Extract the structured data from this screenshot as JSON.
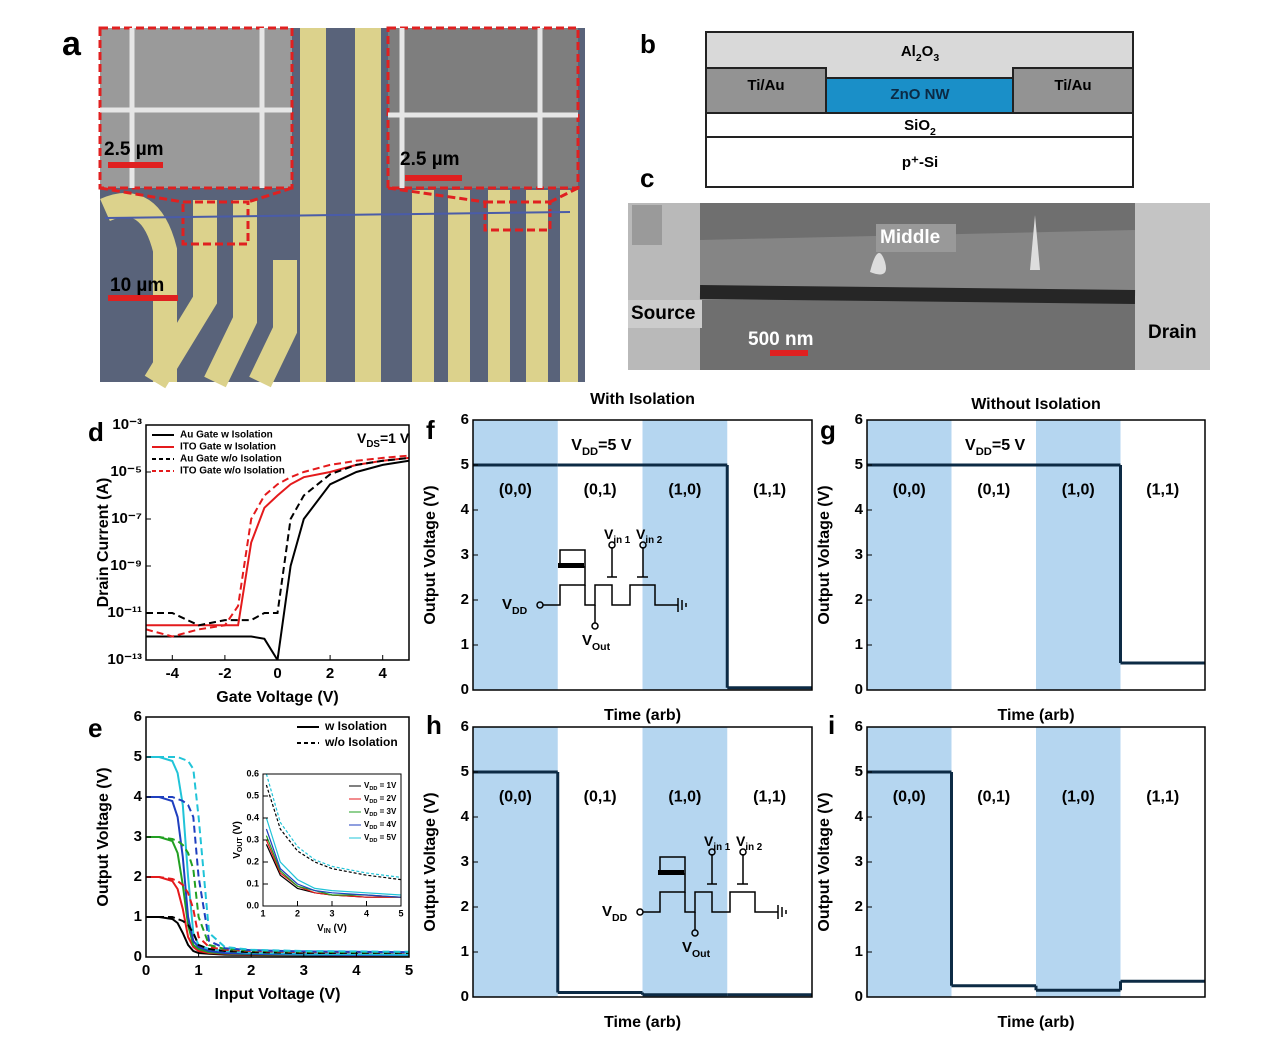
{
  "panel_a": {
    "letter": "a",
    "scale_bars": [
      "2.5 µm",
      "2.5 µm",
      "10 µm"
    ]
  },
  "panel_b": {
    "letter": "b",
    "layers": {
      "top": [
        "Al",
        "2",
        "O",
        "3"
      ],
      "left_contact": "Ti/Au",
      "channel": "ZnO NW",
      "right_contact": "Ti/Au",
      "oxide": [
        "SiO",
        "2"
      ],
      "substrate": "p⁺-Si"
    }
  },
  "panel_c": {
    "letter": "c",
    "labels": [
      "Middle",
      "Source",
      "Drain"
    ],
    "scale_bar": "500 nm"
  },
  "chart_data": [
    {
      "panel": "d",
      "type": "line",
      "xlabel": "Gate Voltage (V)",
      "ylabel": "Drain Current (A)",
      "annotation": [
        "V",
        "DS",
        "=1 V"
      ],
      "log_y": true,
      "xlim": [
        -5,
        5
      ],
      "xticks": [
        -4,
        -2,
        0,
        2,
        4
      ],
      "ylim": [
        1e-13,
        0.001
      ],
      "yticks": [
        {
          "value": 1e-13,
          "label": "10⁻¹³"
        },
        {
          "value": 1e-11,
          "label": "10⁻¹¹"
        },
        {
          "value": 1e-09,
          "label": "10⁻⁹"
        },
        {
          "value": 1e-07,
          "label": "10⁻⁷"
        },
        {
          "value": 1e-05,
          "label": "10⁻⁵"
        },
        {
          "value": 0.001,
          "label": "10⁻³"
        }
      ],
      "x": [
        -5,
        -4,
        -3,
        -2,
        -1.5,
        -1,
        -0.5,
        0,
        0.5,
        1,
        2,
        3,
        4,
        5
      ],
      "legend": "upper left",
      "series": [
        {
          "name": "Au Gate w Isolation",
          "color": "#000000",
          "dash": false,
          "values": [
            1e-12,
            1e-12,
            1e-12,
            1e-12,
            1e-12,
            1e-12,
            8e-13,
            1e-13,
            1e-09,
            1e-07,
            3e-06,
            1e-05,
            2e-05,
            3e-05
          ]
        },
        {
          "name": "ITO Gate w Isolation",
          "color": "#e41a1c",
          "dash": false,
          "values": [
            3e-12,
            3e-12,
            3e-12,
            3e-12,
            3e-12,
            1e-08,
            3e-07,
            1e-06,
            3e-06,
            6e-06,
            1e-05,
            2e-05,
            3e-05,
            4e-05
          ]
        },
        {
          "name": "Au Gate w/o Isolation",
          "color": "#000000",
          "dash": true,
          "values": [
            1e-11,
            1e-11,
            3e-12,
            5e-12,
            5e-12,
            5e-12,
            1e-11,
            1e-11,
            1e-07,
            1e-06,
            8e-06,
            2e-05,
            3e-05,
            4e-05
          ]
        },
        {
          "name": "ITO Gate w/o Isolation",
          "color": "#e41a1c",
          "dash": true,
          "values": [
            2e-12,
            1e-12,
            2e-12,
            3e-12,
            2e-11,
            1e-07,
            1e-06,
            3e-06,
            6e-06,
            1e-05,
            2e-05,
            3e-05,
            4e-05,
            5e-05
          ]
        }
      ]
    },
    {
      "panel": "e",
      "type": "line",
      "xlabel": "Input Voltage (V)",
      "ylabel": "Output Voltage (V)",
      "xlim": [
        0,
        5
      ],
      "xticks": [
        0,
        1,
        2,
        3,
        4,
        5
      ],
      "ylim": [
        0,
        6
      ],
      "yticks": [
        0,
        1,
        2,
        3,
        4,
        5,
        6
      ],
      "x": [
        0,
        0.25,
        0.5,
        0.6,
        0.7,
        0.8,
        0.9,
        1,
        1.2,
        1.5,
        2,
        3,
        4,
        5
      ],
      "legend": "upper right",
      "legend_entries": [
        {
          "name": "w Isolation",
          "color": "#000000",
          "dash": false
        },
        {
          "name": "w/o Isolation",
          "color": "#000000",
          "dash": true
        }
      ],
      "series": [
        {
          "color": "#000000",
          "dash": false,
          "values": [
            1,
            1,
            0.95,
            0.85,
            0.6,
            0.3,
            0.15,
            0.1,
            0.08,
            0.06,
            0.05,
            0.04,
            0.03,
            0.03
          ]
        },
        {
          "color": "#e41a1c",
          "dash": false,
          "values": [
            2,
            2,
            1.9,
            1.7,
            1.2,
            0.5,
            0.25,
            0.15,
            0.1,
            0.08,
            0.06,
            0.05,
            0.04,
            0.04
          ]
        },
        {
          "color": "#22a022",
          "dash": false,
          "values": [
            3,
            3,
            2.9,
            2.6,
            1.8,
            0.8,
            0.3,
            0.2,
            0.12,
            0.09,
            0.07,
            0.05,
            0.05,
            0.04
          ]
        },
        {
          "color": "#1f3fbf",
          "dash": false,
          "values": [
            4,
            4,
            3.9,
            3.5,
            2.5,
            1,
            0.4,
            0.25,
            0.15,
            0.1,
            0.08,
            0.06,
            0.05,
            0.05
          ]
        },
        {
          "color": "#21c4d8",
          "dash": false,
          "values": [
            5,
            5,
            4.9,
            4.6,
            3.8,
            2,
            0.6,
            0.3,
            0.2,
            0.15,
            0.1,
            0.08,
            0.07,
            0.06
          ]
        },
        {
          "color": "#000000",
          "dash": true,
          "values": [
            1,
            1,
            1,
            0.95,
            0.9,
            0.8,
            0.6,
            0.3,
            0.2,
            0.15,
            0.12,
            0.1,
            0.1,
            0.1
          ]
        },
        {
          "color": "#e41a1c",
          "dash": true,
          "values": [
            2,
            2,
            1.95,
            1.9,
            1.8,
            1.6,
            1.2,
            0.5,
            0.25,
            0.18,
            0.15,
            0.12,
            0.12,
            0.11
          ]
        },
        {
          "color": "#22a022",
          "dash": true,
          "values": [
            3,
            3,
            2.95,
            2.9,
            2.8,
            2.6,
            2.2,
            1,
            0.3,
            0.2,
            0.16,
            0.13,
            0.12,
            0.12
          ]
        },
        {
          "color": "#1f3fbf",
          "dash": true,
          "values": [
            4,
            4,
            4,
            3.95,
            3.9,
            3.8,
            3.5,
            2,
            0.4,
            0.22,
            0.17,
            0.14,
            0.13,
            0.12
          ]
        },
        {
          "color": "#21c4d8",
          "dash": true,
          "values": [
            5,
            5,
            5,
            5,
            4.95,
            4.9,
            4.7,
            3.5,
            0.6,
            0.25,
            0.18,
            0.15,
            0.14,
            0.13
          ]
        }
      ]
    },
    {
      "type": "line",
      "inset": true,
      "xlabel": [
        "V",
        "IN",
        " (V)"
      ],
      "ylabel": [
        "V",
        "OUT",
        " (V)"
      ],
      "xlim": [
        1,
        5
      ],
      "xticks": [
        1,
        2,
        3,
        4,
        5
      ],
      "ylim": [
        0,
        0.6
      ],
      "yticks": [
        {
          "value": 0,
          "label": "0.0"
        },
        0.1,
        0.2,
        0.3,
        0.4,
        0.5,
        0.6
      ],
      "x": [
        1.1,
        1.5,
        2,
        2.5,
        3,
        4,
        5
      ],
      "legend": "upper right",
      "series": [
        {
          "name": [
            "V",
            "DD",
            " = 1V"
          ],
          "color": "#000000",
          "dash": false,
          "values": [
            0.28,
            0.14,
            0.08,
            0.06,
            0.05,
            0.04,
            0.04
          ]
        },
        {
          "name": [
            "V",
            "DD",
            " = 2V"
          ],
          "color": "#e41a1c",
          "dash": false,
          "values": [
            0.3,
            0.15,
            0.09,
            0.06,
            0.05,
            0.04,
            0.04
          ]
        },
        {
          "name": [
            "V",
            "DD",
            " = 3V"
          ],
          "color": "#22a022",
          "dash": false,
          "values": [
            0.32,
            0.16,
            0.09,
            0.07,
            0.05,
            0.05,
            0.04
          ]
        },
        {
          "name": [
            "V",
            "DD",
            " = 4V"
          ],
          "color": "#1f3fbf",
          "dash": false,
          "values": [
            0.35,
            0.17,
            0.1,
            0.07,
            0.06,
            0.05,
            0.04
          ]
        },
        {
          "name": [
            "V",
            "DD",
            " = 5V"
          ],
          "color": "#21c4d8",
          "dash": false,
          "values": [
            0.4,
            0.2,
            0.12,
            0.08,
            0.07,
            0.06,
            0.05
          ]
        },
        {
          "color": "#000000",
          "dash": true,
          "values": [
            0.55,
            0.35,
            0.25,
            0.2,
            0.17,
            0.14,
            0.12
          ]
        },
        {
          "color": "#21c4d8",
          "dash": true,
          "values": [
            0.6,
            0.38,
            0.27,
            0.21,
            0.18,
            0.15,
            0.13
          ]
        }
      ]
    },
    {
      "panel": "f",
      "type": "step",
      "title": "With Isolation",
      "xlabel": "Time (arb)",
      "ylabel": "Output Voltage (V)",
      "annotation": [
        "V",
        "DD",
        "=5 V"
      ],
      "categories": [
        "(0,0)",
        "(0,1)",
        "(1,0)",
        "(1,1)"
      ],
      "shade": [
        true,
        false,
        true,
        false
      ],
      "shade_color": "#b5d6f0",
      "color": "#0d2b45",
      "values": [
        5,
        5,
        5,
        0.05
      ],
      "ylim": [
        0,
        6
      ],
      "yticks": [
        0,
        1,
        2,
        3,
        4,
        5,
        6
      ],
      "circuit": {
        "vdd": [
          "V",
          "DD"
        ],
        "vin1": [
          "V",
          "in 1"
        ],
        "vin2": [
          "V",
          "in 2"
        ],
        "vout": [
          "V",
          "Out"
        ]
      }
    },
    {
      "panel": "g",
      "type": "step",
      "title": "Without Isolation",
      "xlabel": "Time (arb)",
      "ylabel": "Output Voltage (V)",
      "annotation": [
        "V",
        "DD",
        "=5 V"
      ],
      "categories": [
        "(0,0)",
        "(0,1)",
        "(1,0)",
        "(1,1)"
      ],
      "shade": [
        true,
        false,
        true,
        false
      ],
      "shade_color": "#b5d6f0",
      "color": "#0d2b45",
      "values": [
        5,
        5,
        5,
        0.6
      ],
      "ylim": [
        0,
        6
      ],
      "yticks": [
        0,
        1,
        2,
        3,
        4,
        5,
        6
      ]
    },
    {
      "panel": "h",
      "type": "step",
      "xlabel": "Time (arb)",
      "ylabel": "Output Voltage (V)",
      "categories": [
        "(0,0)",
        "(0,1)",
        "(1,0)",
        "(1,1)"
      ],
      "shade": [
        true,
        false,
        true,
        false
      ],
      "shade_color": "#b5d6f0",
      "color": "#0d2b45",
      "values": [
        5,
        0.1,
        0.05,
        0.05
      ],
      "ylim": [
        0,
        6
      ],
      "yticks": [
        0,
        1,
        2,
        3,
        4,
        5,
        6
      ],
      "circuit": {
        "vdd": [
          "V",
          "DD"
        ],
        "vin1": [
          "V",
          "in 1"
        ],
        "vin2": [
          "V",
          "in 2"
        ],
        "vout": [
          "V",
          "Out"
        ]
      }
    },
    {
      "panel": "i",
      "type": "step",
      "xlabel": "Time (arb)",
      "ylabel": "Output Voltage (V)",
      "categories": [
        "(0,0)",
        "(0,1)",
        "(1,0)",
        "(1,1)"
      ],
      "shade": [
        true,
        false,
        true,
        false
      ],
      "shade_color": "#b5d6f0",
      "color": "#0d2b45",
      "values": [
        5,
        0.25,
        0.15,
        0.35
      ],
      "ylim": [
        0,
        6
      ],
      "yticks": [
        0,
        1,
        2,
        3,
        4,
        5,
        6
      ]
    }
  ]
}
